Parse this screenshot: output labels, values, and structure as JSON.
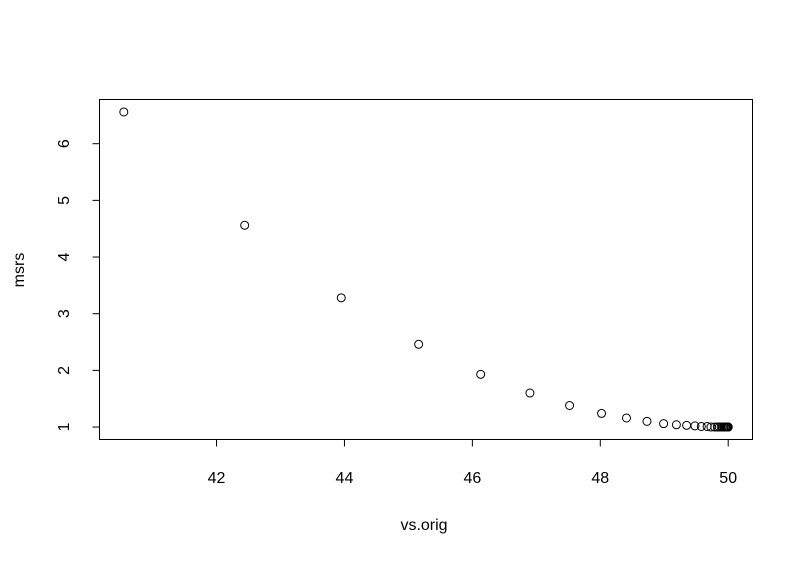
{
  "chart_data": {
    "type": "scatter",
    "title": "",
    "xlabel": "vs.orig",
    "ylabel": "msrs",
    "xlim": [
      40.17,
      50.38
    ],
    "ylim": [
      0.78,
      6.78
    ],
    "xticks": [
      42,
      44,
      46,
      48,
      50
    ],
    "yticks": [
      1,
      2,
      3,
      4,
      5,
      6
    ],
    "grid": false,
    "marker": "open-circle",
    "color": "#000000",
    "x": [
      40.55,
      42.44,
      43.95,
      45.16,
      46.13,
      46.9,
      47.52,
      48.02,
      48.41,
      48.73,
      48.99,
      49.19,
      49.35,
      49.48,
      49.58,
      49.67,
      49.73,
      49.79,
      49.83,
      49.86,
      49.89,
      49.91,
      49.93,
      49.94,
      49.96,
      49.96,
      49.97,
      49.98,
      49.98,
      49.99,
      49.99,
      50.0,
      50.0
    ],
    "y": [
      6.56,
      4.56,
      3.28,
      2.46,
      1.93,
      1.6,
      1.38,
      1.24,
      1.16,
      1.1,
      1.06,
      1.04,
      1.03,
      1.02,
      1.01,
      1.01,
      1.0,
      1.0,
      1.0,
      1.0,
      1.0,
      1.0,
      1.0,
      1.0,
      1.0,
      1.0,
      1.0,
      1.0,
      1.0,
      1.0,
      1.0,
      1.0,
      1.0
    ]
  }
}
